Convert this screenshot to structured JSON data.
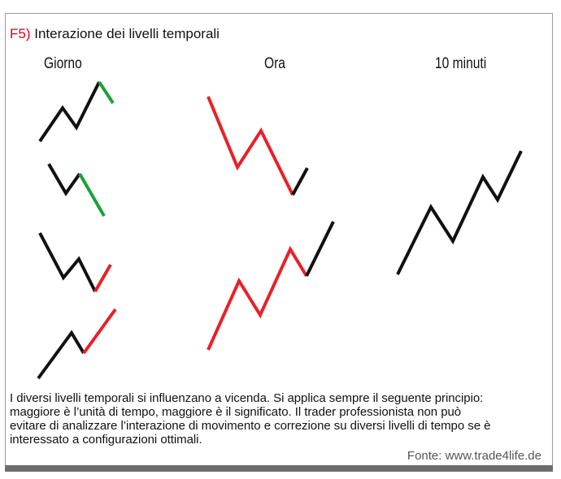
{
  "title": {
    "code": "F5)",
    "text": "Interazione dei livelli temporali"
  },
  "columns": [
    {
      "label": "Giorno"
    },
    {
      "label": "Ora"
    },
    {
      "label": "10 minuti"
    }
  ],
  "colors": {
    "black": "#111111",
    "red": "#e8212a",
    "green": "#1aa13a"
  },
  "caption": {
    "lines": [
      "I diversi livelli temporali si influenzano a vicenda. Si applica sempre il seguente principio:",
      "maggiore è l’unità di tempo, maggiore è il significato. Il trader professionista non può",
      "evitare di analizzare l’interazione di movimento e correzione su diversi livelli di tempo se è",
      "interessato a configurazioni ottimali."
    ]
  },
  "source": "Fonte: www.trade4life.de"
}
